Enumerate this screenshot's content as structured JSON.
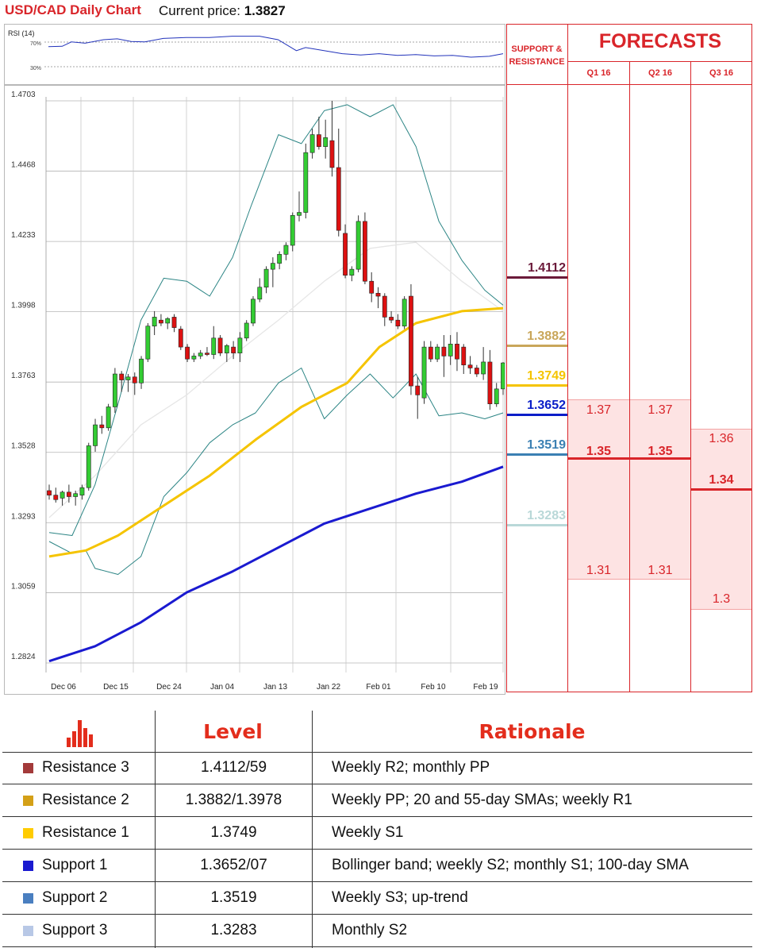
{
  "header": {
    "title": "USD/CAD Daily Chart",
    "price_label": "Current price:",
    "price_value": "1.3827"
  },
  "rsi": {
    "label": "RSI (14)",
    "level_high": "70%",
    "level_low": "30%"
  },
  "colors": {
    "up_candle": "#33cc33",
    "down_candle": "#dd1111",
    "band": "#2c8585",
    "sma20": "#e6e6e6",
    "sma55": "#f5c400",
    "sma100": "#1a1ad0",
    "accent_red": "#d9252a",
    "forecast_fill": "#fde3e3"
  },
  "chart_data": {
    "type": "candlestick",
    "ylim": [
      1.2824,
      1.4703
    ],
    "y_ticks": [
      "1.4703",
      "1.4468",
      "1.4233",
      "1.3998",
      "1.3763",
      "1.3528",
      "1.3293",
      "1.3059",
      "1.2824"
    ],
    "x_ticks": [
      "Dec 06",
      "Dec 15",
      "Dec 24",
      "Jan 04",
      "Jan 13",
      "Jan 22",
      "Feb 01",
      "Feb 10",
      "Feb 19"
    ],
    "candles": [
      [
        1.34,
        1.342,
        1.337,
        1.3385
      ],
      [
        1.3385,
        1.341,
        1.336,
        1.337
      ],
      [
        1.3375,
        1.34,
        1.335,
        1.3395
      ],
      [
        1.3395,
        1.342,
        1.336,
        1.338
      ],
      [
        1.338,
        1.34,
        1.335,
        1.339
      ],
      [
        1.3385,
        1.342,
        1.337,
        1.341
      ],
      [
        1.341,
        1.356,
        1.34,
        1.355
      ],
      [
        1.355,
        1.364,
        1.353,
        1.362
      ],
      [
        1.362,
        1.365,
        1.359,
        1.361
      ],
      [
        1.361,
        1.369,
        1.36,
        1.368
      ],
      [
        1.368,
        1.381,
        1.366,
        1.379
      ],
      [
        1.379,
        1.38,
        1.373,
        1.377
      ],
      [
        1.377,
        1.379,
        1.373,
        1.378
      ],
      [
        1.378,
        1.3795,
        1.372,
        1.376
      ],
      [
        1.376,
        1.385,
        1.374,
        1.384
      ],
      [
        1.384,
        1.396,
        1.383,
        1.395
      ],
      [
        1.395,
        1.4,
        1.392,
        1.398
      ],
      [
        1.397,
        1.399,
        1.395,
        1.396
      ],
      [
        1.396,
        1.398,
        1.394,
        1.3975
      ],
      [
        1.398,
        1.399,
        1.393,
        1.3945
      ],
      [
        1.394,
        1.395,
        1.387,
        1.388
      ],
      [
        1.388,
        1.389,
        1.383,
        1.384
      ],
      [
        1.384,
        1.386,
        1.383,
        1.385
      ],
      [
        1.385,
        1.387,
        1.384,
        1.386
      ],
      [
        1.386,
        1.388,
        1.385,
        1.3855
      ],
      [
        1.3855,
        1.395,
        1.384,
        1.391
      ],
      [
        1.391,
        1.392,
        1.385,
        1.386
      ],
      [
        1.386,
        1.389,
        1.383,
        1.3885
      ],
      [
        1.388,
        1.39,
        1.384,
        1.386
      ],
      [
        1.386,
        1.393,
        1.383,
        1.391
      ],
      [
        1.391,
        1.397,
        1.39,
        1.396
      ],
      [
        1.396,
        1.405,
        1.395,
        1.404
      ],
      [
        1.404,
        1.411,
        1.403,
        1.408
      ],
      [
        1.408,
        1.415,
        1.406,
        1.414
      ],
      [
        1.414,
        1.418,
        1.408,
        1.416
      ],
      [
        1.416,
        1.42,
        1.414,
        1.419
      ],
      [
        1.419,
        1.423,
        1.417,
        1.422
      ],
      [
        1.422,
        1.433,
        1.42,
        1.432
      ],
      [
        1.432,
        1.44,
        1.43,
        1.433
      ],
      [
        1.433,
        1.456,
        1.431,
        1.453
      ],
      [
        1.453,
        1.461,
        1.451,
        1.459
      ],
      [
        1.459,
        1.465,
        1.454,
        1.455
      ],
      [
        1.455,
        1.464,
        1.451,
        1.458
      ],
      [
        1.457,
        1.4703,
        1.445,
        1.448
      ],
      [
        1.448,
        1.461,
        1.425,
        1.427
      ],
      [
        1.426,
        1.429,
        1.411,
        1.412
      ],
      [
        1.412,
        1.415,
        1.41,
        1.414
      ],
      [
        1.414,
        1.432,
        1.413,
        1.43
      ],
      [
        1.43,
        1.433,
        1.409,
        1.41
      ],
      [
        1.41,
        1.413,
        1.403,
        1.406
      ],
      [
        1.406,
        1.408,
        1.401,
        1.405
      ],
      [
        1.405,
        1.406,
        1.395,
        1.398
      ],
      [
        1.398,
        1.4,
        1.396,
        1.397
      ],
      [
        1.397,
        1.399,
        1.394,
        1.395
      ],
      [
        1.395,
        1.405,
        1.394,
        1.404
      ],
      [
        1.405,
        1.409,
        1.372,
        1.375
      ],
      [
        1.375,
        1.378,
        1.364,
        1.372
      ],
      [
        1.371,
        1.39,
        1.369,
        1.388
      ],
      [
        1.388,
        1.39,
        1.383,
        1.384
      ],
      [
        1.384,
        1.389,
        1.383,
        1.388
      ],
      [
        1.388,
        1.392,
        1.378,
        1.385
      ],
      [
        1.385,
        1.392,
        1.382,
        1.389
      ],
      [
        1.389,
        1.393,
        1.38,
        1.384
      ],
      [
        1.388,
        1.389,
        1.379,
        1.382
      ],
      [
        1.382,
        1.385,
        1.379,
        1.381
      ],
      [
        1.381,
        1.382,
        1.378,
        1.379
      ],
      [
        1.379,
        1.388,
        1.377,
        1.383
      ],
      [
        1.383,
        1.387,
        1.367,
        1.369
      ],
      [
        1.369,
        1.376,
        1.368,
        1.374
      ],
      [
        1.374,
        1.383,
        1.372,
        1.3827
      ]
    ],
    "bb_upper": [
      [
        0,
        1.326
      ],
      [
        5,
        1.325
      ],
      [
        10,
        1.342
      ],
      [
        15,
        1.369
      ],
      [
        20,
        1.397
      ],
      [
        25,
        1.411
      ],
      [
        30,
        1.41
      ],
      [
        35,
        1.405
      ],
      [
        40,
        1.418
      ],
      [
        44,
        1.435
      ],
      [
        50,
        1.459
      ],
      [
        55,
        1.456
      ],
      [
        60,
        1.467
      ],
      [
        65,
        1.469
      ],
      [
        70,
        1.465
      ],
      [
        75,
        1.469
      ],
      [
        80,
        1.455
      ],
      [
        85,
        1.43
      ],
      [
        90,
        1.417
      ],
      [
        95,
        1.407
      ],
      [
        99,
        1.402
      ]
    ],
    "bb_lower": [
      [
        0,
        1.323
      ],
      [
        5,
        1.319
      ],
      [
        8,
        1.32
      ],
      [
        10,
        1.314
      ],
      [
        15,
        1.312
      ],
      [
        20,
        1.318
      ],
      [
        25,
        1.338
      ],
      [
        30,
        1.346
      ],
      [
        35,
        1.356
      ],
      [
        40,
        1.362
      ],
      [
        45,
        1.366
      ],
      [
        50,
        1.376
      ],
      [
        55,
        1.381
      ],
      [
        60,
        1.364
      ],
      [
        65,
        1.372
      ],
      [
        70,
        1.379
      ],
      [
        75,
        1.371
      ],
      [
        80,
        1.379
      ],
      [
        85,
        1.365
      ],
      [
        90,
        1.366
      ],
      [
        95,
        1.364
      ],
      [
        99,
        1.366
      ]
    ],
    "sma20": [
      [
        0,
        1.331
      ],
      [
        10,
        1.345
      ],
      [
        20,
        1.362
      ],
      [
        30,
        1.372
      ],
      [
        40,
        1.385
      ],
      [
        50,
        1.397
      ],
      [
        60,
        1.41
      ],
      [
        70,
        1.421
      ],
      [
        80,
        1.423
      ],
      [
        90,
        1.41
      ],
      [
        99,
        1.4
      ]
    ],
    "sma55": [
      [
        0,
        1.318
      ],
      [
        8,
        1.32
      ],
      [
        15,
        1.325
      ],
      [
        25,
        1.335
      ],
      [
        35,
        1.345
      ],
      [
        45,
        1.357
      ],
      [
        55,
        1.368
      ],
      [
        65,
        1.376
      ],
      [
        72,
        1.388
      ],
      [
        80,
        1.396
      ],
      [
        90,
        1.4
      ],
      [
        99,
        1.401
      ]
    ],
    "sma100": [
      [
        0,
        1.283
      ],
      [
        10,
        1.288
      ],
      [
        20,
        1.296
      ],
      [
        30,
        1.306
      ],
      [
        40,
        1.313
      ],
      [
        50,
        1.321
      ],
      [
        60,
        1.329
      ],
      [
        70,
        1.334
      ],
      [
        80,
        1.339
      ],
      [
        90,
        1.343
      ],
      [
        99,
        1.348
      ]
    ],
    "rsi_values": [
      [
        0,
        64
      ],
      [
        3,
        65
      ],
      [
        5,
        75
      ],
      [
        8,
        72
      ],
      [
        12,
        80
      ],
      [
        15,
        82
      ],
      [
        18,
        76
      ],
      [
        21,
        75
      ],
      [
        25,
        83
      ],
      [
        30,
        85
      ],
      [
        35,
        85
      ],
      [
        40,
        88
      ],
      [
        46,
        88
      ],
      [
        50,
        80
      ],
      [
        54,
        55
      ],
      [
        56,
        62
      ],
      [
        60,
        55
      ],
      [
        64,
        48
      ],
      [
        68,
        45
      ],
      [
        72,
        48
      ],
      [
        76,
        44
      ],
      [
        80,
        46
      ],
      [
        84,
        43
      ],
      [
        88,
        44
      ],
      [
        92,
        40
      ],
      [
        96,
        42
      ],
      [
        99,
        48
      ]
    ],
    "rsi_ylim": [
      0,
      100
    ]
  },
  "sr_panel": {
    "title_line1": "SUPPORT &",
    "title_line2": "RESISTANCE"
  },
  "sr_levels": [
    {
      "value": 1.4112,
      "label": "1.4112",
      "color": "#6b1a3a"
    },
    {
      "value": 1.3882,
      "label": "1.3882",
      "color": "#c9a65a"
    },
    {
      "value": 1.3749,
      "label": "1.3749",
      "color": "#f5c400"
    },
    {
      "value": 1.3652,
      "label": "1.3652",
      "color": "#0a1ec8"
    },
    {
      "value": 1.3519,
      "label": "1.3519",
      "color": "#3b80b3"
    },
    {
      "value": 1.3283,
      "label": "1.3283",
      "color": "#b9d8d8"
    }
  ],
  "forecasts": {
    "title": "FORECASTS",
    "quarters": [
      {
        "label": "Q1 16",
        "high": "1.37",
        "mid": "1.35",
        "low": "1.31"
      },
      {
        "label": "Q2 16",
        "high": "1.37",
        "mid": "1.35",
        "low": "1.31"
      },
      {
        "label": "Q3 16",
        "high": "1.36",
        "mid": "1.34",
        "low": "1.3"
      }
    ]
  },
  "table": {
    "headers": {
      "level": "Level",
      "rationale": "Rationale"
    },
    "rows": [
      {
        "name": "Resistance 3",
        "level": "1.4112/59",
        "rationale": "Weekly R2; monthly PP",
        "color": "#a33a3a"
      },
      {
        "name": "Resistance 2",
        "level": "1.3882/1.3978",
        "rationale": "Weekly PP; 20 and 55-day SMAs; weekly R1",
        "color": "#d4a017"
      },
      {
        "name": "Resistance 1",
        "level": "1.3749",
        "rationale": "Weekly S1",
        "color": "#ffcc00"
      },
      {
        "name": "Support 1",
        "level": "1.3652/07",
        "rationale": "Bollinger band; weekly S2; monthly S1; 100-day SMA",
        "color": "#1a1ad0"
      },
      {
        "name": "Support 2",
        "level": "1.3519",
        "rationale": "Weekly S3; up-trend",
        "color": "#4a7fc0"
      },
      {
        "name": "Support 3",
        "level": "1.3283",
        "rationale": "Monthly S2",
        "color": "#b8c8e6"
      }
    ]
  }
}
